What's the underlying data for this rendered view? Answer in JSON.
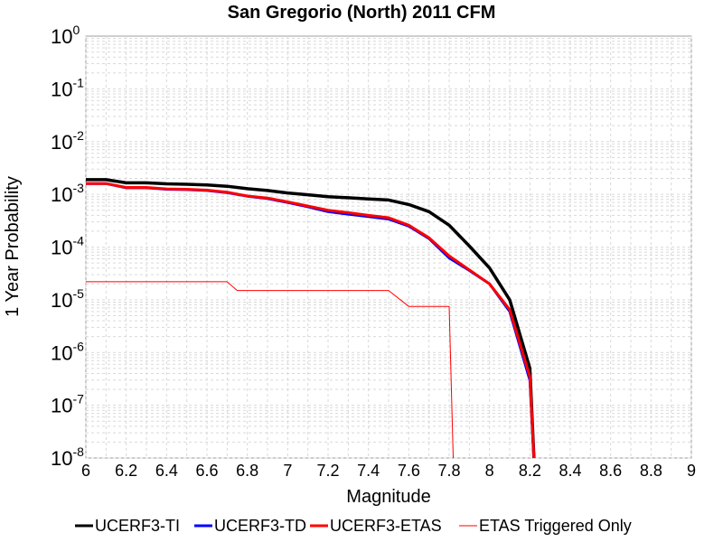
{
  "chart_data": {
    "type": "line",
    "title": "San Gregorio (North) 2011 CFM",
    "xlabel": "Magnitude",
    "ylabel": "1 Year Probability",
    "xlim": [
      6,
      9
    ],
    "ylim": [
      1e-08,
      1
    ],
    "yscale": "log",
    "grid": true,
    "legend_position": "bottom",
    "x_ticks": [
      "6",
      "6.2",
      "6.4",
      "6.6",
      "6.8",
      "7",
      "7.2",
      "7.4",
      "7.6",
      "7.8",
      "8",
      "8.2",
      "8.4",
      "8.6",
      "8.8",
      "9"
    ],
    "y_ticks": [
      {
        "base": "10",
        "exp": "0"
      },
      {
        "base": "10",
        "exp": "-1"
      },
      {
        "base": "10",
        "exp": "-2"
      },
      {
        "base": "10",
        "exp": "-3"
      },
      {
        "base": "10",
        "exp": "-4"
      },
      {
        "base": "10",
        "exp": "-5"
      },
      {
        "base": "10",
        "exp": "-6"
      },
      {
        "base": "10",
        "exp": "-7"
      },
      {
        "base": "10",
        "exp": "-8"
      }
    ],
    "series": [
      {
        "name": "UCERF3-TI",
        "color": "#000000",
        "points": [
          [
            6.0,
            0.0019
          ],
          [
            6.1,
            0.0019
          ],
          [
            6.2,
            0.00165
          ],
          [
            6.3,
            0.00165
          ],
          [
            6.4,
            0.00158
          ],
          [
            6.5,
            0.00155
          ],
          [
            6.6,
            0.0015
          ],
          [
            6.7,
            0.00142
          ],
          [
            6.8,
            0.00128
          ],
          [
            6.9,
            0.00118
          ],
          [
            7.0,
            0.00106
          ],
          [
            7.1,
            0.00098
          ],
          [
            7.2,
            0.0009
          ],
          [
            7.3,
            0.00086
          ],
          [
            7.4,
            0.00082
          ],
          [
            7.5,
            0.00078
          ],
          [
            7.6,
            0.00064
          ],
          [
            7.7,
            0.00047
          ],
          [
            7.8,
            0.00026
          ],
          [
            7.9,
            0.000105
          ],
          [
            8.0,
            4e-05
          ],
          [
            8.1,
            1e-05
          ],
          [
            8.2,
            5e-07
          ],
          [
            8.22,
            1e-08
          ]
        ]
      },
      {
        "name": "UCERF3-TD",
        "color": "#0000ff",
        "points": [
          [
            6.0,
            0.0016
          ],
          [
            6.1,
            0.0016
          ],
          [
            6.2,
            0.00133
          ],
          [
            6.3,
            0.00133
          ],
          [
            6.4,
            0.00125
          ],
          [
            6.5,
            0.00123
          ],
          [
            6.6,
            0.00118
          ],
          [
            6.7,
            0.00108
          ],
          [
            6.8,
            0.00092
          ],
          [
            6.9,
            0.00083
          ],
          [
            7.0,
            0.0007
          ],
          [
            7.1,
            0.00058
          ],
          [
            7.2,
            0.00047
          ],
          [
            7.3,
            0.00042
          ],
          [
            7.4,
            0.00038
          ],
          [
            7.5,
            0.00034
          ],
          [
            7.6,
            0.00025
          ],
          [
            7.7,
            0.000145
          ],
          [
            7.8,
            6.2e-05
          ],
          [
            7.9,
            3.6e-05
          ],
          [
            8.0,
            2e-05
          ],
          [
            8.1,
            6e-06
          ],
          [
            8.2,
            3e-07
          ],
          [
            8.22,
            1e-08
          ]
        ]
      },
      {
        "name": "UCERF3-ETAS",
        "color": "#ff0000",
        "points": [
          [
            6.0,
            0.0016
          ],
          [
            6.1,
            0.0016
          ],
          [
            6.2,
            0.00135
          ],
          [
            6.3,
            0.00135
          ],
          [
            6.4,
            0.00127
          ],
          [
            6.5,
            0.00125
          ],
          [
            6.6,
            0.0012
          ],
          [
            6.7,
            0.0011
          ],
          [
            6.8,
            0.00093
          ],
          [
            6.9,
            0.00085
          ],
          [
            7.0,
            0.00072
          ],
          [
            7.1,
            0.0006
          ],
          [
            7.2,
            0.0005
          ],
          [
            7.3,
            0.00045
          ],
          [
            7.4,
            0.0004
          ],
          [
            7.5,
            0.00036
          ],
          [
            7.6,
            0.00026
          ],
          [
            7.7,
            0.00015
          ],
          [
            7.8,
            6.8e-05
          ],
          [
            7.9,
            3.7e-05
          ],
          [
            8.0,
            2e-05
          ],
          [
            8.1,
            6.5e-06
          ],
          [
            8.2,
            3.5e-07
          ],
          [
            8.22,
            1e-08
          ]
        ]
      },
      {
        "name": "ETAS Triggered Only",
        "color": "#ff0000",
        "points": [
          [
            6.0,
            2.2e-05
          ],
          [
            6.7,
            2.2e-05
          ],
          [
            6.75,
            1.5e-05
          ],
          [
            7.5,
            1.5e-05
          ],
          [
            7.6,
            7.5e-06
          ],
          [
            7.8,
            7.5e-06
          ],
          [
            7.82,
            1e-08
          ]
        ]
      }
    ]
  }
}
